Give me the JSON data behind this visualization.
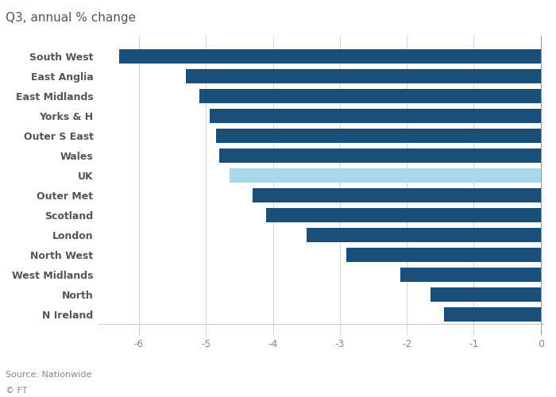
{
  "categories": [
    "South West",
    "East Anglia",
    "East Midlands",
    "Yorks & H",
    "Outer S East",
    "Wales",
    "UK",
    "Outer Met",
    "Scotland",
    "London",
    "North West",
    "West Midlands",
    "North",
    "N Ireland"
  ],
  "values": [
    -6.3,
    -5.3,
    -5.1,
    -4.95,
    -4.85,
    -4.8,
    -4.65,
    -4.3,
    -4.1,
    -3.5,
    -2.9,
    -2.1,
    -1.65,
    -1.45
  ],
  "bar_colors": [
    "#1a4f7a",
    "#1a4f7a",
    "#1a4f7a",
    "#1a4f7a",
    "#1a4f7a",
    "#1a4f7a",
    "#a8d8ea",
    "#1a4f7a",
    "#1a4f7a",
    "#1a4f7a",
    "#1a4f7a",
    "#1a4f7a",
    "#1a4f7a",
    "#1a4f7a"
  ],
  "title": "Q3, annual % change",
  "xlim": [
    -6.6,
    0.05
  ],
  "xticks": [
    -6,
    -5,
    -4,
    -3,
    -2,
    -1,
    0
  ],
  "source": "Source: Nationwide",
  "footer": "© FT",
  "background_color": "#ffffff",
  "grid_color": "#d0d0d0",
  "axis_line_color": "#1a4f7a",
  "title_fontsize": 11,
  "label_fontsize": 9,
  "tick_fontsize": 9
}
